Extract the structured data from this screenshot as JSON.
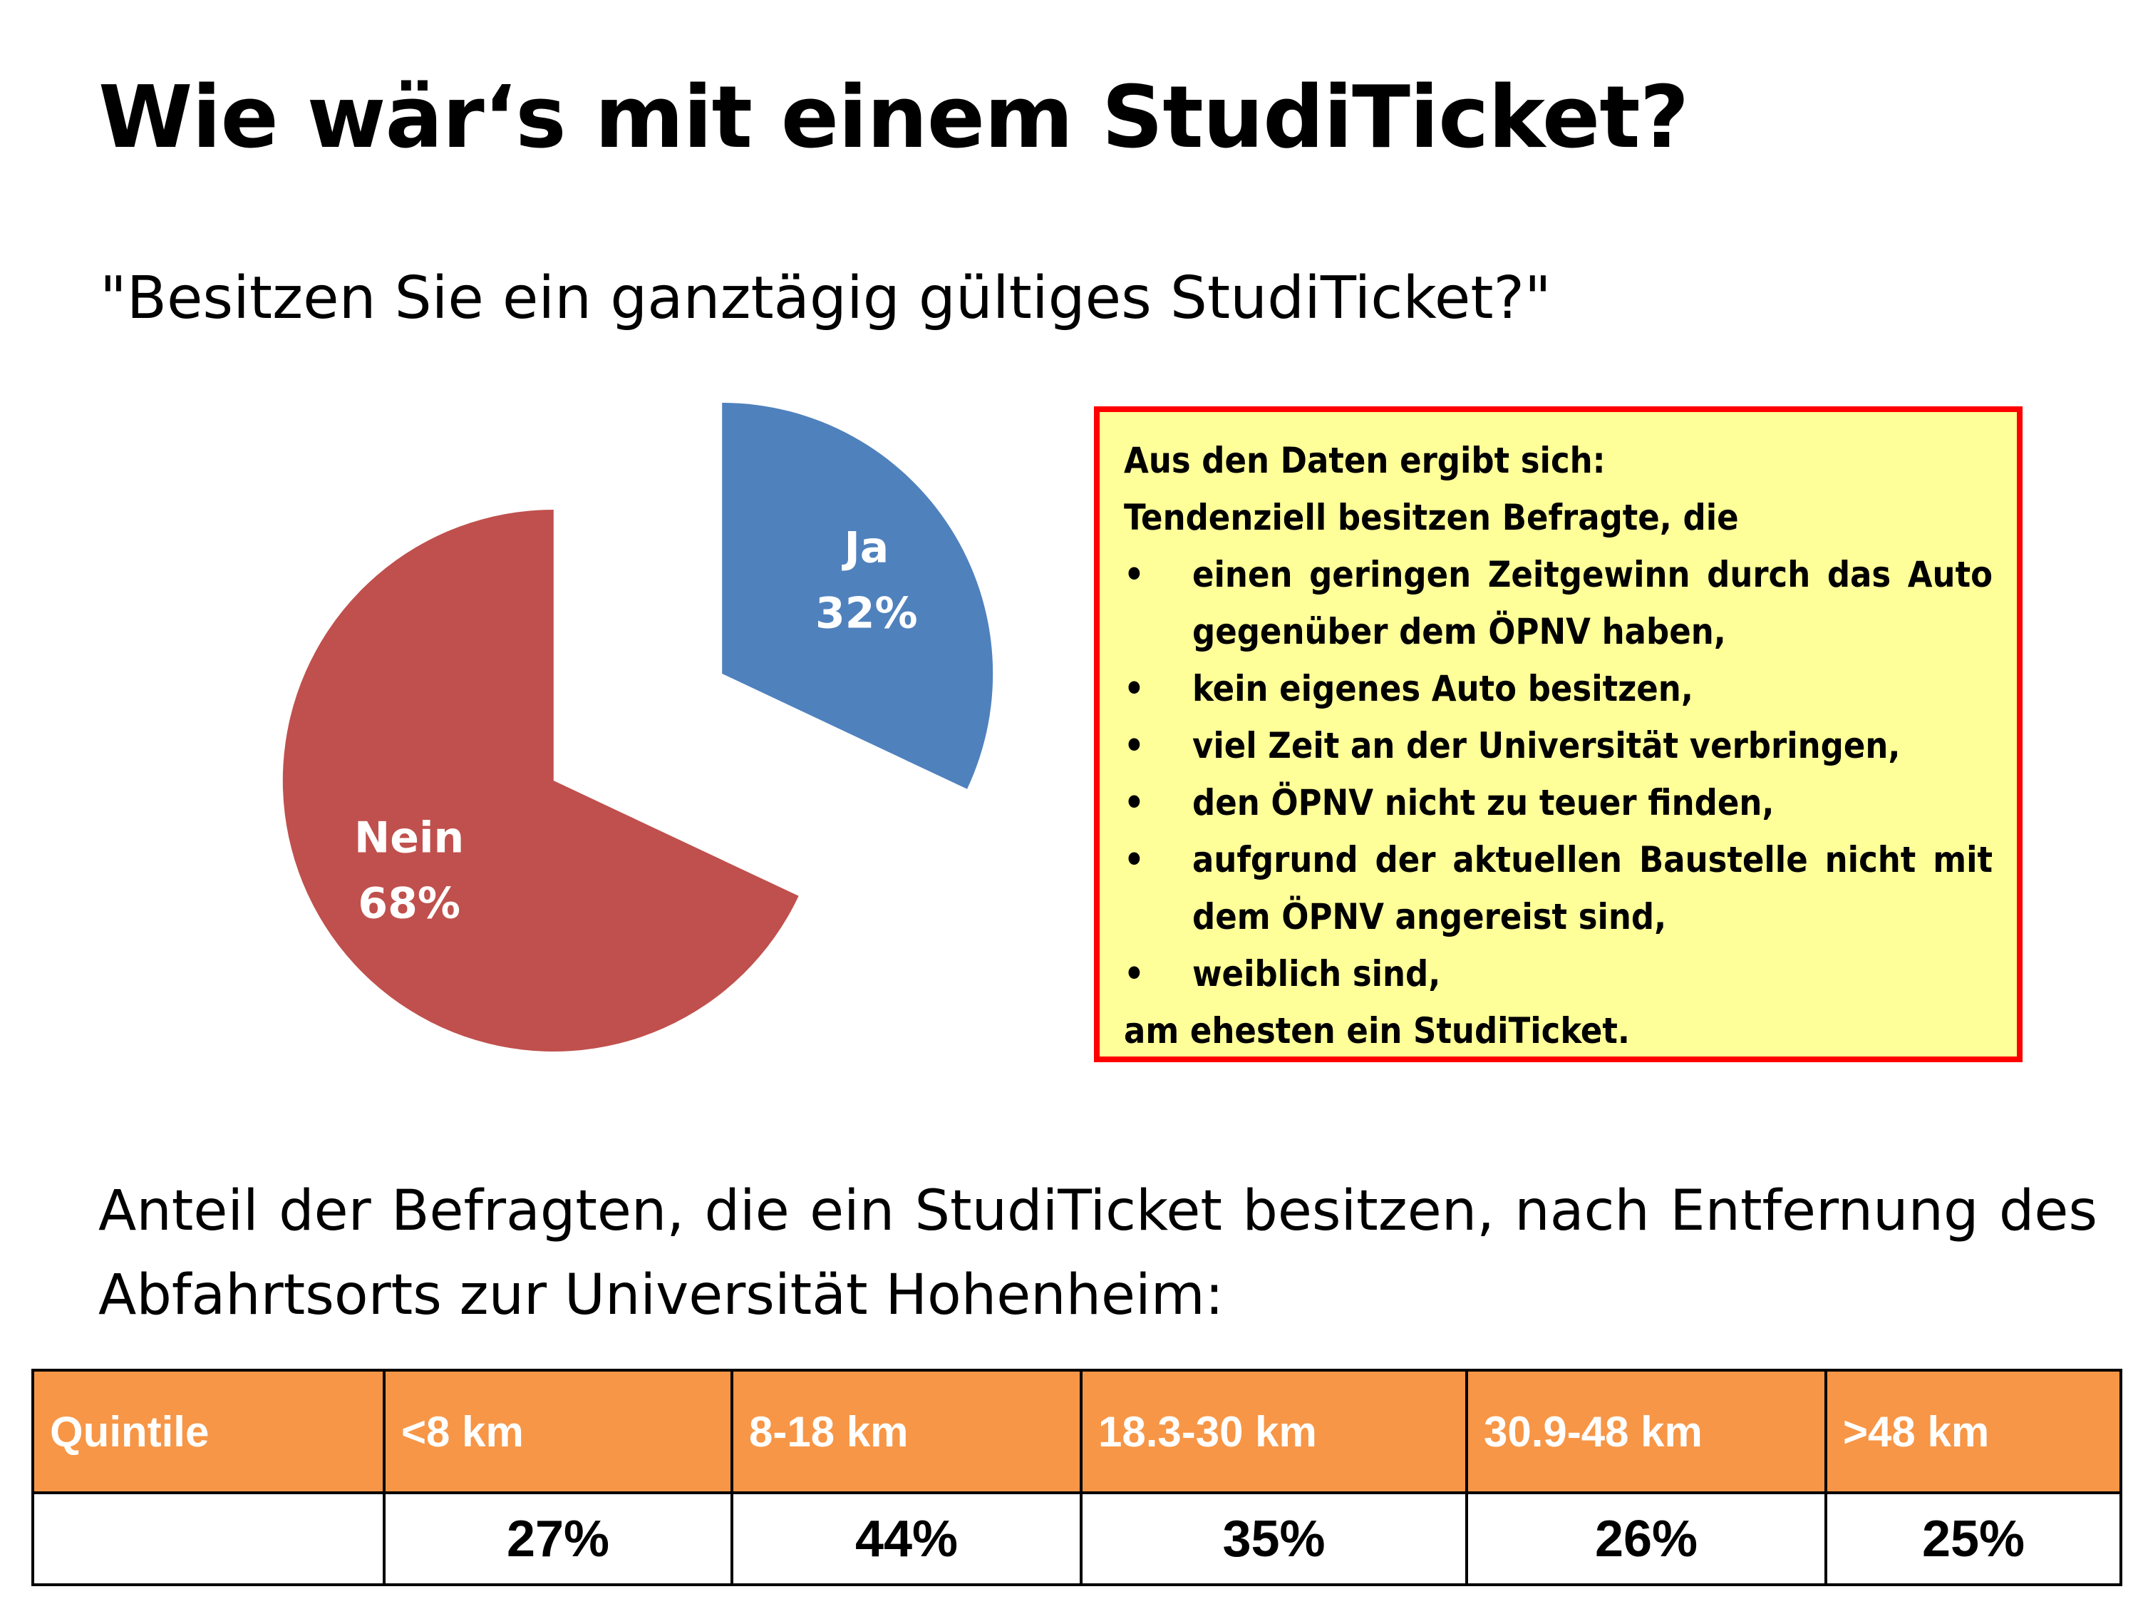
{
  "page": {
    "title": "Wie wär‘s mit einem StudiTicket?",
    "question": "\"Besitzen Sie ein ganztägig gültiges StudiTicket?\"",
    "paragraph": "Anteil der Befragten, die ein StudiTicket besitzen, nach Entfernung des Abfahrtsorts zur Universität Hohenheim:"
  },
  "callout": {
    "line1": "Aus den Daten ergibt sich:",
    "line2": "Tendenziell besitzen Befragte, die",
    "bullets": [
      "einen geringen Zeitgewinn durch das Auto gegenüber dem ÖPNV haben,",
      "kein eigenes Auto besitzen,",
      "viel Zeit an der Universität verbringen,",
      "den ÖPNV nicht zu teuer finden,",
      "aufgrund der aktuellen Baustelle nicht mit dem ÖPNV angereist sind,",
      "weiblich sind,"
    ],
    "bullet_char": "•",
    "line_last": "am ehesten ein StudiTicket.",
    "background": "#ffff99",
    "border": "#ff0000"
  },
  "chart_data": {
    "type": "pie",
    "exploded": true,
    "slices": [
      {
        "label": "Ja",
        "value": 32,
        "value_text": "32%",
        "color": "#4f81bd"
      },
      {
        "label": "Nein",
        "value": 68,
        "value_text": "68%",
        "color": "#c0504d"
      }
    ]
  },
  "table": {
    "header_label": "Quintile",
    "header_bg": "#f79646",
    "columns": [
      "<8 km",
      "8-18 km",
      "18.3-30 km",
      "30.9-48 km",
      ">48 km"
    ],
    "row_label": "",
    "values": [
      "27%",
      "44%",
      "35%",
      "26%",
      "25%"
    ]
  }
}
